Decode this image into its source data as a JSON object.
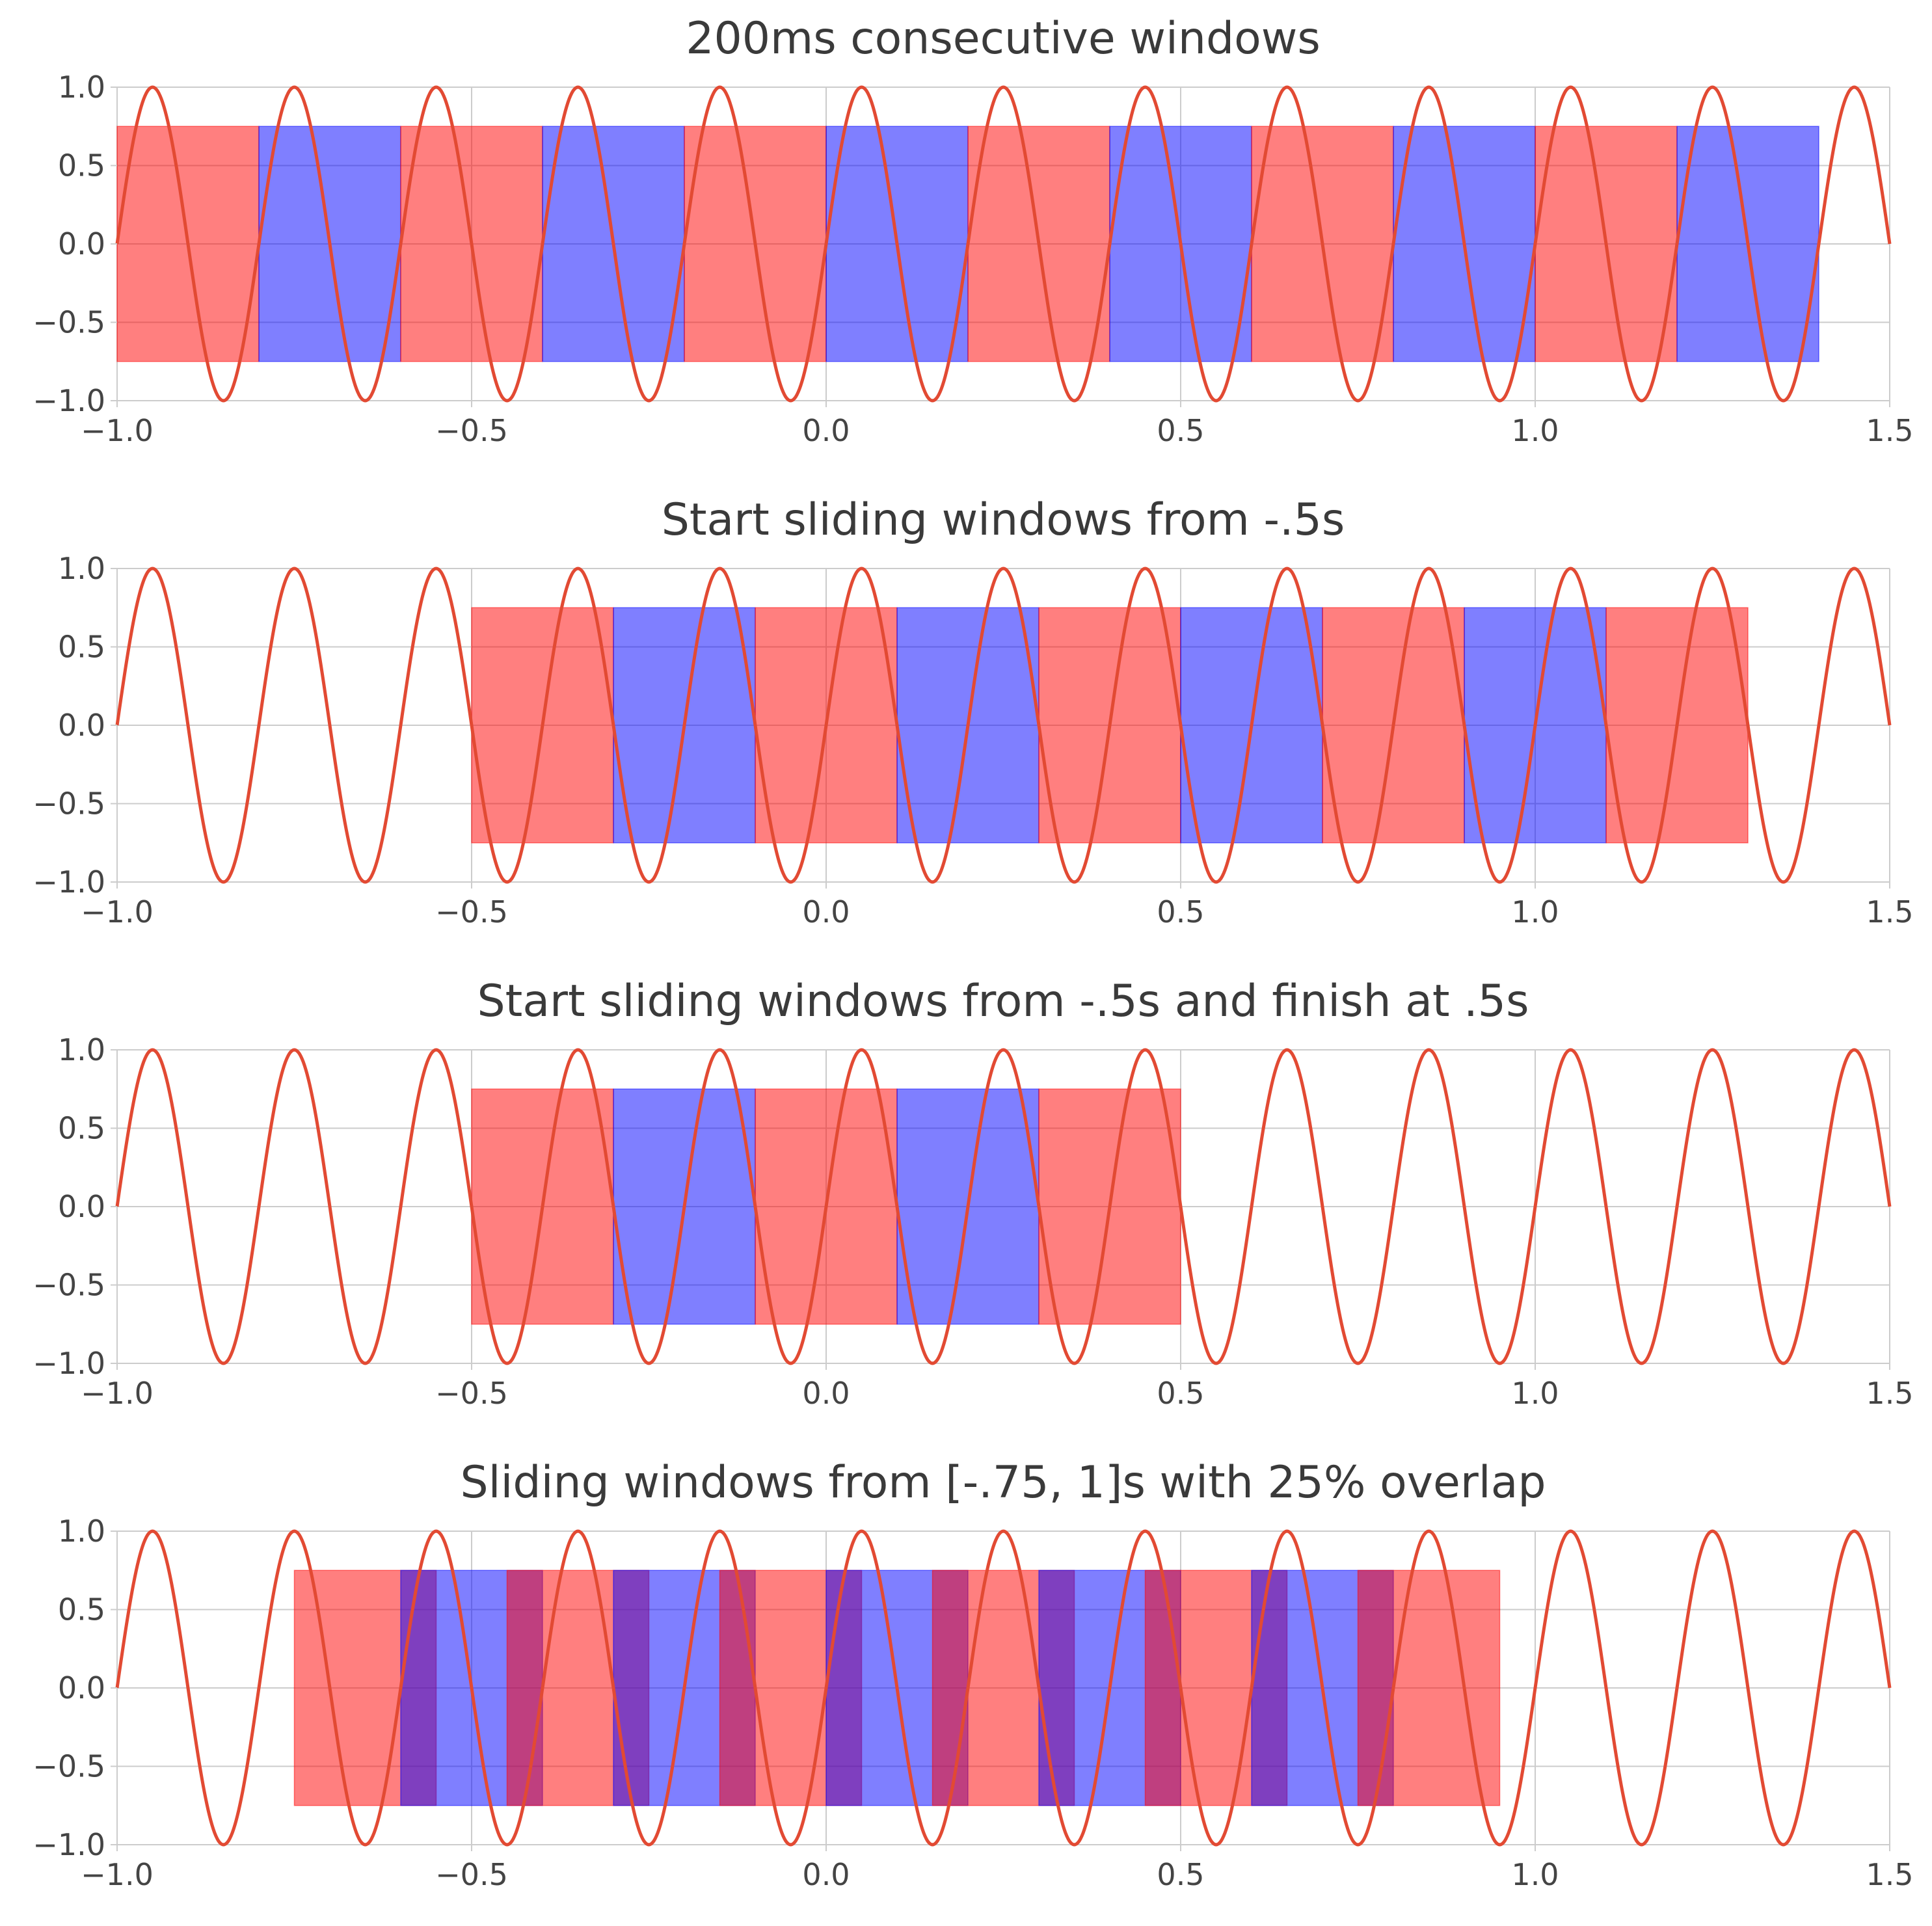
{
  "colors": {
    "background": "#ffffff",
    "grid": "#cccccc",
    "text": "#3a3a3a",
    "signal": "#e24a33",
    "window_red": "#ff0000",
    "window_blue": "#0000ff",
    "window_alpha": 0.5
  },
  "chart_data": [
    {
      "type": "line",
      "title": "200ms consecutive windows",
      "xlabel": "",
      "ylabel": "",
      "xlim": [
        -1.0,
        1.5
      ],
      "ylim": [
        -1.0,
        1.0
      ],
      "grid": true,
      "x_ticks": [
        -1.0,
        -0.5,
        0.0,
        0.5,
        1.0,
        1.5
      ],
      "x_tick_labels": [
        "−1.0",
        "−0.5",
        "0.0",
        "0.5",
        "1.0",
        "1.5"
      ],
      "y_ticks": [
        1.0,
        0.5,
        0.0,
        -0.5,
        -1.0
      ],
      "y_tick_labels": [
        "1.0",
        "0.5",
        "0.0",
        "−0.5",
        "−1.0"
      ],
      "signal": {
        "function": "sin(2π·5·t)",
        "frequency_hz": 5,
        "amplitude": 1.0,
        "x_range": [
          -1.0,
          1.5
        ]
      },
      "windows": [
        {
          "start": -1.0,
          "end": -0.8,
          "ymin": -0.75,
          "ymax": 0.75,
          "color": "red"
        },
        {
          "start": -0.8,
          "end": -0.6,
          "ymin": -0.75,
          "ymax": 0.75,
          "color": "blue"
        },
        {
          "start": -0.6,
          "end": -0.4,
          "ymin": -0.75,
          "ymax": 0.75,
          "color": "red"
        },
        {
          "start": -0.4,
          "end": -0.2,
          "ymin": -0.75,
          "ymax": 0.75,
          "color": "blue"
        },
        {
          "start": -0.2,
          "end": 0.0,
          "ymin": -0.75,
          "ymax": 0.75,
          "color": "red"
        },
        {
          "start": 0.0,
          "end": 0.2,
          "ymin": -0.75,
          "ymax": 0.75,
          "color": "blue"
        },
        {
          "start": 0.2,
          "end": 0.4,
          "ymin": -0.75,
          "ymax": 0.75,
          "color": "red"
        },
        {
          "start": 0.4,
          "end": 0.6,
          "ymin": -0.75,
          "ymax": 0.75,
          "color": "blue"
        },
        {
          "start": 0.6,
          "end": 0.8,
          "ymin": -0.75,
          "ymax": 0.75,
          "color": "red"
        },
        {
          "start": 0.8,
          "end": 1.0,
          "ymin": -0.75,
          "ymax": 0.75,
          "color": "blue"
        },
        {
          "start": 1.0,
          "end": 1.2,
          "ymin": -0.75,
          "ymax": 0.75,
          "color": "red"
        },
        {
          "start": 1.2,
          "end": 1.4,
          "ymin": -0.75,
          "ymax": 0.75,
          "color": "blue"
        }
      ]
    },
    {
      "type": "line",
      "title": "Start sliding windows from -.5s",
      "xlabel": "",
      "ylabel": "",
      "xlim": [
        -1.0,
        1.5
      ],
      "ylim": [
        -1.0,
        1.0
      ],
      "grid": true,
      "x_ticks": [
        -1.0,
        -0.5,
        0.0,
        0.5,
        1.0,
        1.5
      ],
      "x_tick_labels": [
        "−1.0",
        "−0.5",
        "0.0",
        "0.5",
        "1.0",
        "1.5"
      ],
      "y_ticks": [
        1.0,
        0.5,
        0.0,
        -0.5,
        -1.0
      ],
      "y_tick_labels": [
        "1.0",
        "0.5",
        "0.0",
        "−0.5",
        "−1.0"
      ],
      "signal": {
        "function": "sin(2π·5·t)",
        "frequency_hz": 5,
        "amplitude": 1.0,
        "x_range": [
          -1.0,
          1.5
        ]
      },
      "windows": [
        {
          "start": -0.5,
          "end": -0.3,
          "ymin": -0.75,
          "ymax": 0.75,
          "color": "red"
        },
        {
          "start": -0.3,
          "end": -0.1,
          "ymin": -0.75,
          "ymax": 0.75,
          "color": "blue"
        },
        {
          "start": -0.1,
          "end": 0.1,
          "ymin": -0.75,
          "ymax": 0.75,
          "color": "red"
        },
        {
          "start": 0.1,
          "end": 0.3,
          "ymin": -0.75,
          "ymax": 0.75,
          "color": "blue"
        },
        {
          "start": 0.3,
          "end": 0.5,
          "ymin": -0.75,
          "ymax": 0.75,
          "color": "red"
        },
        {
          "start": 0.5,
          "end": 0.7,
          "ymin": -0.75,
          "ymax": 0.75,
          "color": "blue"
        },
        {
          "start": 0.7,
          "end": 0.9,
          "ymin": -0.75,
          "ymax": 0.75,
          "color": "red"
        },
        {
          "start": 0.9,
          "end": 1.1,
          "ymin": -0.75,
          "ymax": 0.75,
          "color": "blue"
        },
        {
          "start": 1.1,
          "end": 1.3,
          "ymin": -0.75,
          "ymax": 0.75,
          "color": "red"
        }
      ]
    },
    {
      "type": "line",
      "title": "Start sliding windows from -.5s and finish at .5s",
      "xlabel": "",
      "ylabel": "",
      "xlim": [
        -1.0,
        1.5
      ],
      "ylim": [
        -1.0,
        1.0
      ],
      "grid": true,
      "x_ticks": [
        -1.0,
        -0.5,
        0.0,
        0.5,
        1.0,
        1.5
      ],
      "x_tick_labels": [
        "−1.0",
        "−0.5",
        "0.0",
        "0.5",
        "1.0",
        "1.5"
      ],
      "y_ticks": [
        1.0,
        0.5,
        0.0,
        -0.5,
        -1.0
      ],
      "y_tick_labels": [
        "1.0",
        "0.5",
        "0.0",
        "−0.5",
        "−1.0"
      ],
      "signal": {
        "function": "sin(2π·5·t)",
        "frequency_hz": 5,
        "amplitude": 1.0,
        "x_range": [
          -1.0,
          1.5
        ]
      },
      "windows": [
        {
          "start": -0.5,
          "end": -0.3,
          "ymin": -0.75,
          "ymax": 0.75,
          "color": "red"
        },
        {
          "start": -0.3,
          "end": -0.1,
          "ymin": -0.75,
          "ymax": 0.75,
          "color": "blue"
        },
        {
          "start": -0.1,
          "end": 0.1,
          "ymin": -0.75,
          "ymax": 0.75,
          "color": "red"
        },
        {
          "start": 0.1,
          "end": 0.3,
          "ymin": -0.75,
          "ymax": 0.75,
          "color": "blue"
        },
        {
          "start": 0.3,
          "end": 0.5,
          "ymin": -0.75,
          "ymax": 0.75,
          "color": "red"
        }
      ]
    },
    {
      "type": "line",
      "title": "Sliding windows from [-.75, 1]s with 25% overlap",
      "xlabel": "",
      "ylabel": "",
      "xlim": [
        -1.0,
        1.5
      ],
      "ylim": [
        -1.0,
        1.0
      ],
      "grid": true,
      "x_ticks": [
        -1.0,
        -0.5,
        0.0,
        0.5,
        1.0,
        1.5
      ],
      "x_tick_labels": [
        "−1.0",
        "−0.5",
        "0.0",
        "0.5",
        "1.0",
        "1.5"
      ],
      "y_ticks": [
        1.0,
        0.5,
        0.0,
        -0.5,
        -1.0
      ],
      "y_tick_labels": [
        "1.0",
        "0.5",
        "0.0",
        "−0.5",
        "−1.0"
      ],
      "signal": {
        "function": "sin(2π·5·t)",
        "frequency_hz": 5,
        "amplitude": 1.0,
        "x_range": [
          -1.0,
          1.5
        ]
      },
      "windows": [
        {
          "start": -0.75,
          "end": -0.55,
          "ymin": -0.75,
          "ymax": 0.75,
          "color": "red"
        },
        {
          "start": -0.6,
          "end": -0.4,
          "ymin": -0.75,
          "ymax": 0.75,
          "color": "blue"
        },
        {
          "start": -0.45,
          "end": -0.25,
          "ymin": -0.75,
          "ymax": 0.75,
          "color": "red"
        },
        {
          "start": -0.3,
          "end": -0.1,
          "ymin": -0.75,
          "ymax": 0.75,
          "color": "blue"
        },
        {
          "start": -0.15,
          "end": 0.05,
          "ymin": -0.75,
          "ymax": 0.75,
          "color": "red"
        },
        {
          "start": 0.0,
          "end": 0.2,
          "ymin": -0.75,
          "ymax": 0.75,
          "color": "blue"
        },
        {
          "start": 0.15,
          "end": 0.35,
          "ymin": -0.75,
          "ymax": 0.75,
          "color": "red"
        },
        {
          "start": 0.3,
          "end": 0.5,
          "ymin": -0.75,
          "ymax": 0.75,
          "color": "blue"
        },
        {
          "start": 0.45,
          "end": 0.65,
          "ymin": -0.75,
          "ymax": 0.75,
          "color": "red"
        },
        {
          "start": 0.6,
          "end": 0.8,
          "ymin": -0.75,
          "ymax": 0.75,
          "color": "blue"
        },
        {
          "start": 0.75,
          "end": 0.95,
          "ymin": -0.75,
          "ymax": 0.75,
          "color": "red"
        }
      ]
    }
  ]
}
